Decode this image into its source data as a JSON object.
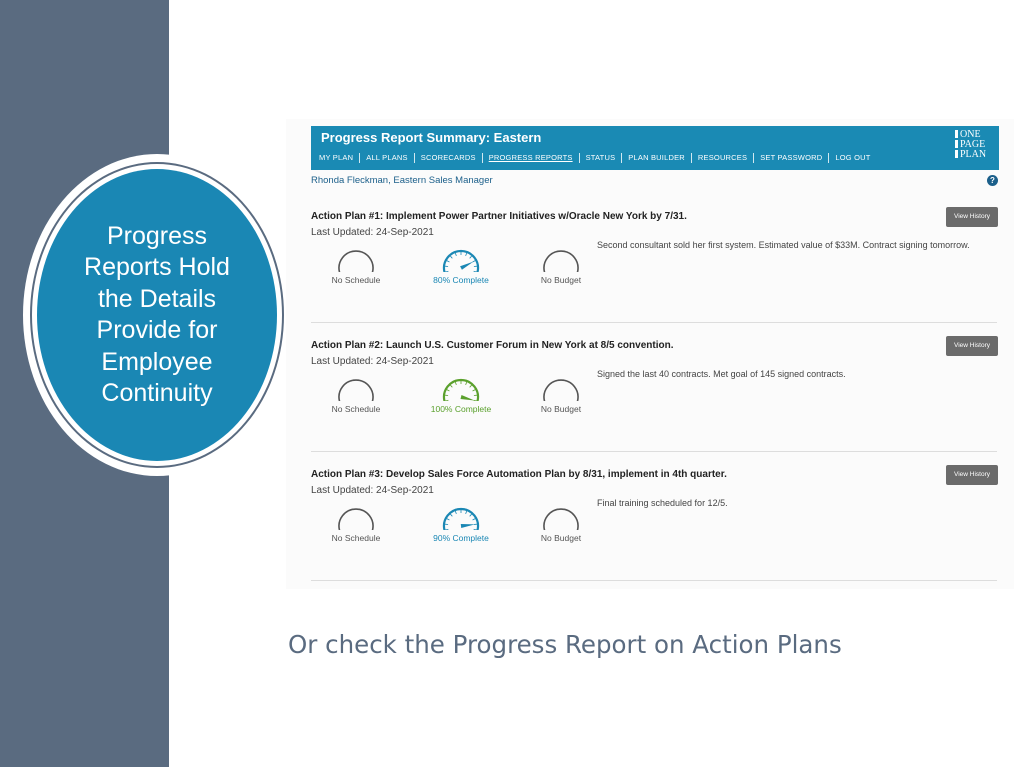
{
  "callout": {
    "text": "Progress\nReports Hold\nthe Details\nProvide for\nEmployee\nContinuity"
  },
  "caption": "Or check the Progress Report on Action Plans",
  "colors": {
    "header": "#1a8ab4",
    "slate": "#5a6b80",
    "complete_green": "#5aa02c",
    "gauge_blue": "#1a87b4",
    "gauge_gray": "#555555"
  },
  "app": {
    "title": "Progress Report Summary: Eastern",
    "nav": [
      "MY PLAN",
      "ALL PLANS",
      "SCORECARDS",
      "PROGRESS REPORTS",
      "STATUS",
      "PLAN BUILDER",
      "RESOURCES",
      "SET PASSWORD",
      "LOG OUT"
    ],
    "active_nav": "PROGRESS REPORTS",
    "logo": [
      "ONE",
      "PAGE",
      "PLAN"
    ],
    "user": "Rhonda Fleckman, Eastern Sales Manager",
    "help_icon": "?"
  },
  "plans": [
    {
      "title": "Action Plan #1: Implement Power Partner Initiatives w/Oracle New York by 7/31.",
      "updated": "Last Updated: 24-Sep-2021",
      "button": "View History",
      "note": "Second consultant sold her first system. Estimated value of $33M. Contract signing tomorrow.",
      "gauges": [
        {
          "label": "No Schedule",
          "kind": "none"
        },
        {
          "label": "80% Complete",
          "kind": "progress",
          "value": 0.8,
          "color": "#1a87b4"
        },
        {
          "label": "No Budget",
          "kind": "none"
        }
      ]
    },
    {
      "title": "Action Plan #2: Launch U.S. Customer Forum in New York at 8/5 convention.",
      "updated": "Last Updated: 24-Sep-2021",
      "button": "View History",
      "note": "Signed the last 40 contracts. Met goal of 145 signed contracts.",
      "gauges": [
        {
          "label": "No Schedule",
          "kind": "none"
        },
        {
          "label": "100% Complete",
          "kind": "progress",
          "value": 1.0,
          "color": "#5aa02c"
        },
        {
          "label": "No Budget",
          "kind": "none"
        }
      ]
    },
    {
      "title": "Action Plan #3: Develop Sales Force Automation Plan by 8/31, implement in 4th quarter.",
      "updated": "Last Updated: 24-Sep-2021",
      "button": "View History",
      "note": "Final training scheduled for 12/5.",
      "gauges": [
        {
          "label": "No Schedule",
          "kind": "none"
        },
        {
          "label": "90% Complete",
          "kind": "progress",
          "value": 0.9,
          "color": "#1a87b4"
        },
        {
          "label": "No Budget",
          "kind": "none"
        }
      ]
    }
  ]
}
